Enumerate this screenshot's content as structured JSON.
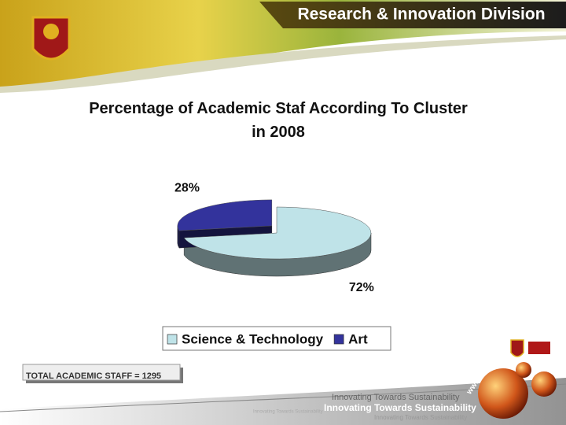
{
  "header": {
    "title": "Research & Innovation Division"
  },
  "chart_data": {
    "type": "pie",
    "title": "Percentage of Academic Staf According To Cluster in 2008",
    "categories": [
      "Science & Technology",
      "Art"
    ],
    "values": [
      72,
      28
    ],
    "value_labels": [
      "72%",
      "28%"
    ],
    "colors": [
      "#bfe3e8",
      "#33339c"
    ],
    "legend": "bottom"
  },
  "note": "TOTAL ACADEMIC STAFF = 1295",
  "footer": {
    "tagline": "Innovating Towards Sustainability",
    "url": "www.usm.my/rnd"
  }
}
